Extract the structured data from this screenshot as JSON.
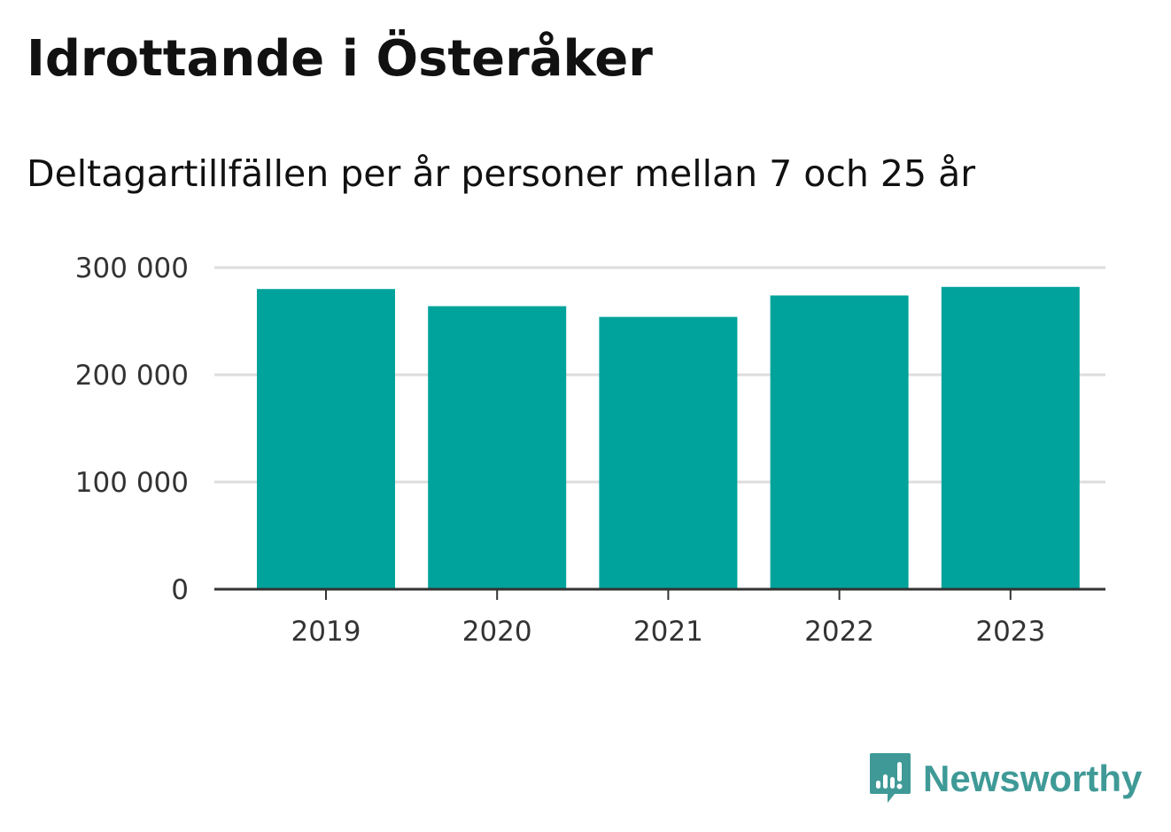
{
  "title": "Idrottande i Österåker",
  "subtitle": "Deltagartillfällen per år personer mellan 7 och 25 år",
  "brand": {
    "name": "Newsworthy",
    "icon": "newsworthy-logo-icon",
    "color": "#3f9a97"
  },
  "colors": {
    "bar": "#00a39b",
    "grid": "#dddddd",
    "axis": "#333333"
  },
  "chart_data": {
    "type": "bar",
    "categories": [
      "2019",
      "2020",
      "2021",
      "2022",
      "2023"
    ],
    "values": [
      280000,
      264000,
      254000,
      274000,
      282000
    ],
    "title": "Idrottande i Österåker",
    "subtitle": "Deltagartillfällen per år personer mellan 7 och 25 år",
    "xlabel": "",
    "ylabel": "",
    "ylim": [
      0,
      300000
    ],
    "yticks": [
      0,
      100000,
      200000,
      300000
    ],
    "ytick_labels": [
      "0",
      "100 000",
      "200 000",
      "300 000"
    ],
    "grid": true,
    "legend": false
  }
}
